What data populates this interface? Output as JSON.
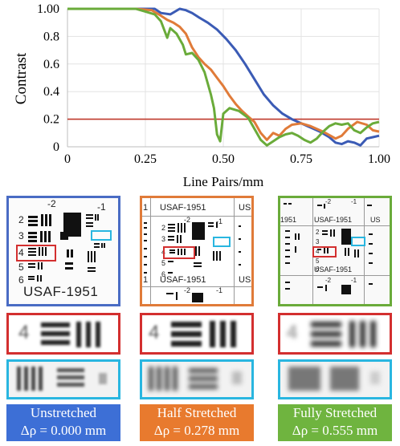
{
  "chart_data": {
    "type": "line",
    "xlabel": "Line Pairs/mm",
    "ylabel": "Contrast",
    "xlim": [
      0,
      1.0
    ],
    "ylim": [
      0,
      1.0
    ],
    "x_ticks": [
      "0",
      "0.25",
      "0.50",
      "0.75",
      "1.00"
    ],
    "y_ticks": [
      "0",
      "0.2",
      "0.4",
      "0.6",
      "0.8",
      "1.00"
    ],
    "threshold": {
      "y": 0.2,
      "color": "#c0392b"
    },
    "series": [
      {
        "color": "#3b5bb5",
        "points": [
          [
            0,
            1.0
          ],
          [
            0.22,
            1.0
          ],
          [
            0.28,
            1.0
          ],
          [
            0.3,
            0.97
          ],
          [
            0.33,
            0.96
          ],
          [
            0.36,
            1.0
          ],
          [
            0.38,
            0.99
          ],
          [
            0.4,
            0.97
          ],
          [
            0.42,
            0.94
          ],
          [
            0.45,
            0.9
          ],
          [
            0.48,
            0.85
          ],
          [
            0.51,
            0.78
          ],
          [
            0.54,
            0.7
          ],
          [
            0.57,
            0.6
          ],
          [
            0.6,
            0.49
          ],
          [
            0.63,
            0.38
          ],
          [
            0.66,
            0.3
          ],
          [
            0.69,
            0.24
          ],
          [
            0.72,
            0.2
          ],
          [
            0.75,
            0.17
          ],
          [
            0.78,
            0.14
          ],
          [
            0.81,
            0.11
          ],
          [
            0.84,
            0.07
          ],
          [
            0.86,
            0.03
          ],
          [
            0.88,
            0.02
          ],
          [
            0.9,
            0.04
          ],
          [
            0.92,
            0.03
          ],
          [
            0.94,
            0.01
          ],
          [
            0.96,
            0.06
          ],
          [
            0.98,
            0.07
          ],
          [
            1.0,
            0.08
          ]
        ]
      },
      {
        "color": "#e07b39",
        "points": [
          [
            0,
            1.0
          ],
          [
            0.22,
            1.0
          ],
          [
            0.27,
            0.99
          ],
          [
            0.3,
            0.95
          ],
          [
            0.32,
            0.92
          ],
          [
            0.34,
            0.9
          ],
          [
            0.36,
            0.87
          ],
          [
            0.38,
            0.82
          ],
          [
            0.4,
            0.72
          ],
          [
            0.42,
            0.65
          ],
          [
            0.44,
            0.6
          ],
          [
            0.46,
            0.56
          ],
          [
            0.48,
            0.5
          ],
          [
            0.5,
            0.44
          ],
          [
            0.52,
            0.37
          ],
          [
            0.54,
            0.31
          ],
          [
            0.56,
            0.26
          ],
          [
            0.58,
            0.22
          ],
          [
            0.6,
            0.18
          ],
          [
            0.62,
            0.1
          ],
          [
            0.64,
            0.05
          ],
          [
            0.66,
            0.1
          ],
          [
            0.68,
            0.08
          ],
          [
            0.7,
            0.13
          ],
          [
            0.72,
            0.16
          ],
          [
            0.75,
            0.17
          ],
          [
            0.78,
            0.15
          ],
          [
            0.82,
            0.11
          ],
          [
            0.86,
            0.06
          ],
          [
            0.88,
            0.08
          ],
          [
            0.9,
            0.13
          ],
          [
            0.93,
            0.18
          ],
          [
            0.96,
            0.16
          ],
          [
            0.98,
            0.12
          ],
          [
            1.0,
            0.11
          ]
        ]
      },
      {
        "color": "#6aab3a",
        "points": [
          [
            0,
            1.0
          ],
          [
            0.22,
            1.0
          ],
          [
            0.25,
            0.98
          ],
          [
            0.28,
            0.96
          ],
          [
            0.3,
            0.91
          ],
          [
            0.32,
            0.79
          ],
          [
            0.33,
            0.86
          ],
          [
            0.35,
            0.82
          ],
          [
            0.37,
            0.74
          ],
          [
            0.38,
            0.67
          ],
          [
            0.4,
            0.68
          ],
          [
            0.42,
            0.63
          ],
          [
            0.44,
            0.54
          ],
          [
            0.46,
            0.38
          ],
          [
            0.47,
            0.28
          ],
          [
            0.48,
            0.09
          ],
          [
            0.49,
            0.04
          ],
          [
            0.5,
            0.24
          ],
          [
            0.52,
            0.28
          ],
          [
            0.55,
            0.26
          ],
          [
            0.58,
            0.21
          ],
          [
            0.6,
            0.13
          ],
          [
            0.62,
            0.05
          ],
          [
            0.64,
            0.01
          ],
          [
            0.66,
            0.04
          ],
          [
            0.68,
            0.07
          ],
          [
            0.7,
            0.09
          ],
          [
            0.72,
            0.1
          ],
          [
            0.74,
            0.08
          ],
          [
            0.76,
            0.05
          ],
          [
            0.78,
            0.03
          ],
          [
            0.8,
            0.06
          ],
          [
            0.82,
            0.11
          ],
          [
            0.84,
            0.15
          ],
          [
            0.86,
            0.17
          ],
          [
            0.88,
            0.16
          ],
          [
            0.9,
            0.17
          ],
          [
            0.92,
            0.12
          ],
          [
            0.94,
            0.1
          ],
          [
            0.96,
            0.14
          ],
          [
            0.98,
            0.17
          ],
          [
            1.0,
            0.18
          ]
        ]
      }
    ]
  },
  "targets": [
    {
      "title": "USAF-1951",
      "color": "#4a6cc4",
      "label_line1": "Unstretched",
      "label_line2": "Δρ = 0.000 mm",
      "label_bg": "#3d6fd6",
      "label_fg": "#ffffff"
    },
    {
      "title": "USAF-1951",
      "color": "#e07b39",
      "label_line1": "Half Stretched",
      "label_line2": "Δρ = 0.278 mm",
      "label_bg": "#e87a2e",
      "label_fg": "#ffffff"
    },
    {
      "title": "USAF-1951",
      "color": "#6aab3a",
      "label_line1": "Fully Stretched",
      "label_line2": "Δρ = 0.555 mm",
      "label_bg": "#6fb43f",
      "label_fg": "#ffffff"
    }
  ],
  "target_marks": {
    "group_minus2": "-2",
    "group_minus1": "-1",
    "el2": "2",
    "el3": "3",
    "el4": "4",
    "el5": "5",
    "el6": "6",
    "partial_left": "1",
    "partial_right": "US",
    "partial_left2": "1951",
    "partial_right2": "US"
  },
  "zoom_red_number": "4",
  "colors": {
    "zoom_red": "#d32f2f",
    "zoom_cyan": "#29b6e0"
  }
}
